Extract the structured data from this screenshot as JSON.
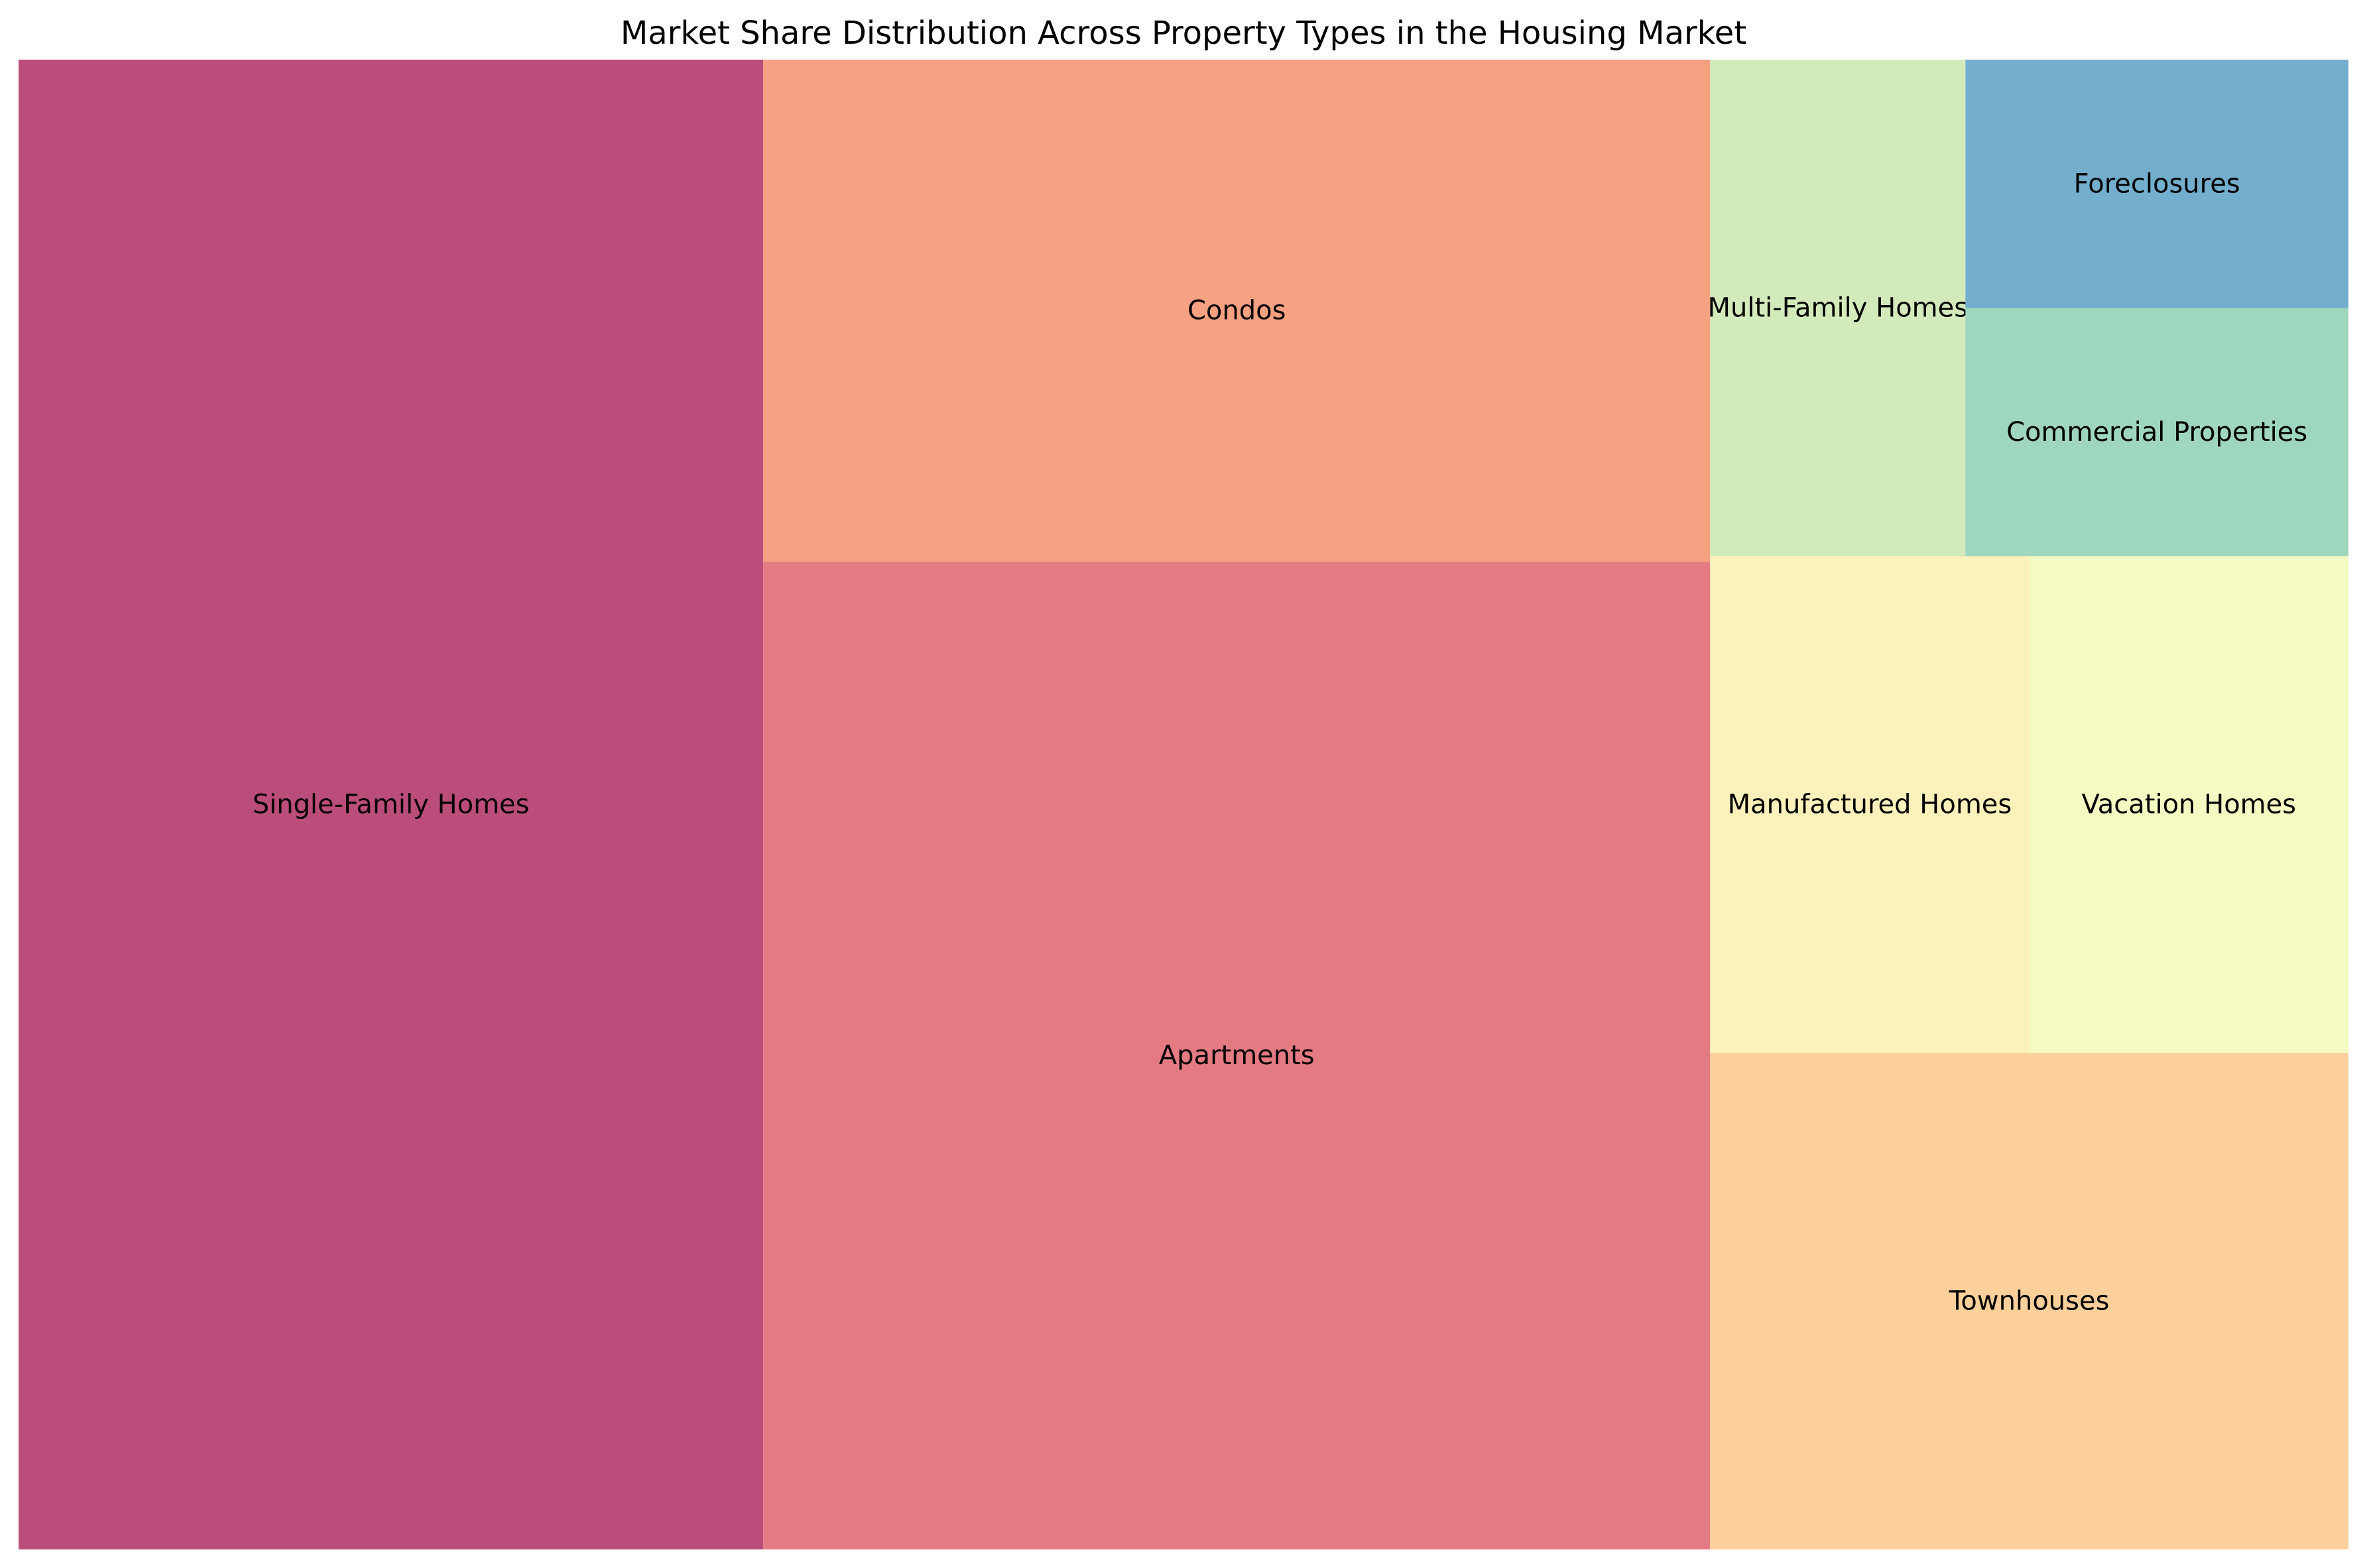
{
  "chart_data": {
    "type": "treemap",
    "title": "Market Share Distribution Across Property Types in the Housing Market",
    "grid": false,
    "legend": "none",
    "categories": [
      "Single-Family Homes",
      "Apartments",
      "Condos",
      "Townhouses",
      "Manufactured Homes",
      "Vacation Homes",
      "Multi-Family Homes",
      "Commercial Properties",
      "Foreclosures"
    ],
    "values": [
      35,
      29.5,
      15,
      10,
      5,
      5,
      4,
      3,
      3
    ],
    "colors": [
      "#bb4d7b",
      "#e47b83",
      "#f6a182",
      "#fbd09a",
      "#fdf1bb",
      "#f5f9c2",
      "#d3eabb",
      "#9fd6be",
      "#73aecd"
    ]
  }
}
